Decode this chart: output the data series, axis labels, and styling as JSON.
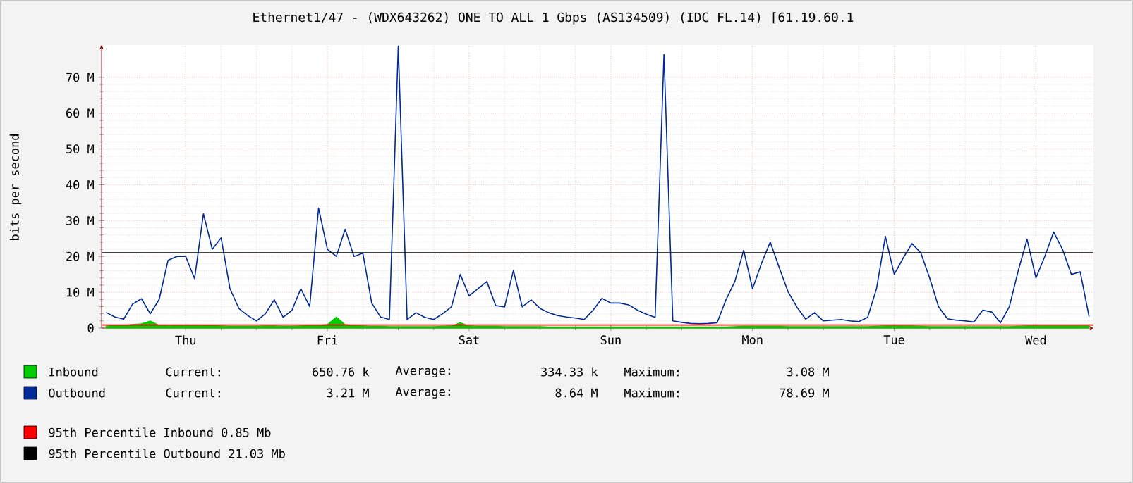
{
  "chart_data": {
    "type": "line",
    "title": "Ethernet1/47 - (WDX643262) ONE TO ALL 1 Gbps (AS134509) (IDC FL.14) [61.19.60.1",
    "ylabel": "bits per second",
    "categories": [
      null,
      null,
      null,
      null,
      null,
      null,
      null,
      null,
      null,
      "Thu",
      null,
      null,
      null,
      null,
      null,
      null,
      null,
      null,
      null,
      null,
      null,
      null,
      null,
      null,
      null,
      "Fri",
      null,
      null,
      null,
      null,
      null,
      null,
      null,
      null,
      null,
      null,
      null,
      null,
      null,
      null,
      null,
      "Sat",
      null,
      null,
      null,
      null,
      null,
      null,
      null,
      null,
      null,
      null,
      null,
      null,
      null,
      null,
      null,
      "Sun",
      null,
      null,
      null,
      null,
      null,
      null,
      null,
      null,
      null,
      null,
      null,
      null,
      null,
      null,
      null,
      "Mon",
      null,
      null,
      null,
      null,
      null,
      null,
      null,
      null,
      null,
      null,
      null,
      null,
      null,
      null,
      null,
      "Tue",
      null,
      null,
      null,
      null,
      null,
      null,
      null,
      null,
      null,
      null,
      null,
      null,
      null,
      null,
      null,
      "Wed",
      null,
      null,
      null,
      null,
      null,
      null
    ],
    "ylim": [
      0,
      79
    ],
    "yticks": [
      0,
      {
        "value": 10,
        "label": "10 M"
      },
      {
        "value": 20,
        "label": "20 M"
      },
      {
        "value": 30,
        "label": "30 M"
      },
      {
        "value": 40,
        "label": "40 M"
      },
      {
        "value": 50,
        "label": "50 M"
      },
      {
        "value": 60,
        "label": "60 M"
      },
      {
        "value": 70,
        "label": "70 M"
      }
    ],
    "grid": true,
    "legend": "bottom",
    "series": [
      {
        "name": "Inbound",
        "type": "area",
        "color": "#00cc00",
        "values": [
          0.5,
          0.8,
          0.8,
          1,
          1.2,
          2,
          0.8,
          0.6,
          0.7,
          0.9,
          0.8,
          0.7,
          0.7,
          0.6,
          0.5,
          0.5,
          0.5,
          0.5,
          0.6,
          0.6,
          0.5,
          0.5,
          0.6,
          0.7,
          0.8,
          1,
          3.1,
          1,
          0.7,
          0.6,
          0.5,
          0.5,
          0.4,
          0.4,
          0.4,
          0.4,
          0.4,
          0.4,
          0.5,
          0.6,
          1.5,
          0.6,
          0.5,
          0.5,
          0.5,
          0.4,
          0.4,
          0.4,
          0.4,
          0.4,
          0.3,
          0.3,
          0.3,
          0.3,
          0.3,
          0.3,
          0.3,
          0.3,
          0.3,
          0.3,
          0.3,
          0.3,
          0.3,
          0.3,
          0.3,
          0.3,
          0.3,
          0.3,
          0.3,
          0.3,
          0.3,
          0.4,
          0.5,
          0.5,
          0.5,
          0.5,
          0.5,
          0.4,
          0.4,
          0.4,
          0.4,
          0.4,
          0.4,
          0.4,
          0.4,
          0.4,
          0.4,
          0.5,
          0.6,
          0.6,
          0.6,
          0.6,
          0.5,
          0.4,
          0.4,
          0.4,
          0.4,
          0.4,
          0.4,
          0.4,
          0.4,
          0.4,
          0.4,
          0.5,
          0.6,
          0.6,
          0.6,
          0.6,
          0.6,
          0.6,
          0.6,
          0.6
        ]
      },
      {
        "name": "Outbound",
        "color": "#002a97",
        "values": [
          4.4,
          3.1,
          2.5,
          6.7,
          8.2,
          4,
          8,
          18.9,
          20,
          20,
          13.8,
          31.9,
          22,
          25.2,
          11,
          5.5,
          3.5,
          2,
          4,
          7.9,
          3,
          5,
          11,
          6,
          33.5,
          22,
          20,
          27.6,
          20,
          20.9,
          7,
          3.1,
          2.4,
          78.7,
          2.4,
          4.3,
          3,
          2.4,
          4,
          5.9,
          15,
          9,
          11,
          13,
          6.3,
          5.9,
          16.1,
          5.9,
          7.9,
          5.5,
          4.3,
          3.5,
          3.1,
          2.8,
          2.4,
          5,
          8.3,
          7,
          7,
          6.5,
          5,
          3.9,
          3,
          76.4,
          2,
          1.6,
          1.3,
          1.2,
          1.3,
          1.5,
          7.9,
          13,
          21.7,
          11,
          18,
          24,
          17,
          10.2,
          5.9,
          2.5,
          4.3,
          2,
          2.2,
          2.4,
          2,
          1.8,
          3,
          11,
          25.6,
          15,
          19.5,
          23.6,
          21,
          14,
          6,
          2.6,
          2.2,
          2,
          1.7,
          5,
          4.5,
          1.5,
          6,
          16,
          24.8,
          14,
          20,
          26.8,
          22,
          15,
          15.7,
          3.2
        ]
      }
    ],
    "ref_lines": [
      {
        "axis": "y",
        "value": 0.85,
        "label": "95th Percentile Inbound  0.85 Mb",
        "color": "#ff0000"
      },
      {
        "axis": "y",
        "value": 21.03,
        "label": "95th Percentile Outbound  21.03 Mb",
        "color": "#000000"
      }
    ],
    "annotations": [
      "Current:",
      "650.76 k",
      "Average:",
      "334.33 k",
      "Maximum:",
      "3.08 M",
      "Current:",
      "3.21 M",
      "Average:",
      "8.64 M",
      "Maximum:",
      "78.69 M"
    ]
  }
}
